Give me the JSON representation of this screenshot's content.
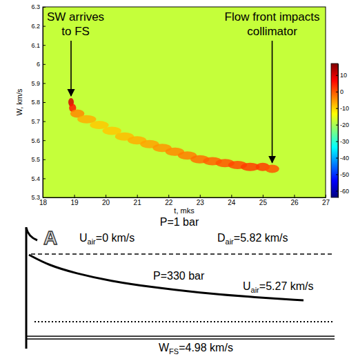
{
  "chart_data": {
    "type": "heatmap",
    "xlabel": "t, mks",
    "ylabel": "W, km/s",
    "xlim": [
      18,
      27
    ],
    "xticks": [
      18,
      19,
      20,
      21,
      22,
      23,
      24,
      25,
      26,
      27
    ],
    "ylim": [
      5.3,
      6.3
    ],
    "yticks": [
      5.3,
      5.4,
      5.5,
      5.6,
      5.7,
      5.8,
      5.9,
      6,
      6.1,
      6.2,
      6.3
    ],
    "background_value": -18,
    "trace": {
      "x": [
        18.9,
        18.95,
        19.1,
        19.4,
        19.8,
        20.2,
        20.6,
        21.0,
        21.4,
        21.8,
        22.2,
        22.6,
        23.0,
        23.4,
        23.8,
        24.2,
        24.6,
        25.0,
        25.3
      ],
      "y": [
        5.8,
        5.77,
        5.74,
        5.71,
        5.68,
        5.65,
        5.62,
        5.6,
        5.58,
        5.56,
        5.54,
        5.52,
        5.5,
        5.49,
        5.48,
        5.47,
        5.46,
        5.46,
        5.45
      ],
      "values": [
        10,
        5,
        -4,
        -7,
        -9,
        -9,
        -8,
        -7,
        -6,
        -5,
        -4,
        -3,
        -2,
        -1,
        0,
        1,
        2,
        2,
        0
      ]
    },
    "color_range": [
      -64,
      17
    ],
    "color_ticks": [
      -60,
      -50,
      -40,
      -30,
      -20,
      -10,
      0,
      10
    ],
    "annotations": [
      {
        "lines": [
          "SW arrives",
          "to FS"
        ],
        "x": 18.9,
        "y": 5.8
      },
      {
        "lines": [
          "Flow front impacts",
          "collimator"
        ],
        "x": 25.3,
        "y": 5.45
      }
    ]
  },
  "diagram": {
    "panel_label": "A",
    "labels": [
      {
        "text": "P=1 bar"
      },
      {
        "symbol": "U",
        "subscript": "air",
        "text": "=0 km/s"
      },
      {
        "symbol": "D",
        "subscript": "air",
        "text": "=5.82 km/s"
      },
      {
        "text": "P=330 bar"
      },
      {
        "symbol": "U",
        "subscript": "air",
        "text": "=5.27 km/s"
      },
      {
        "symbol": "W",
        "subscript": "FS",
        "text": "=4.98 km/s"
      }
    ]
  }
}
